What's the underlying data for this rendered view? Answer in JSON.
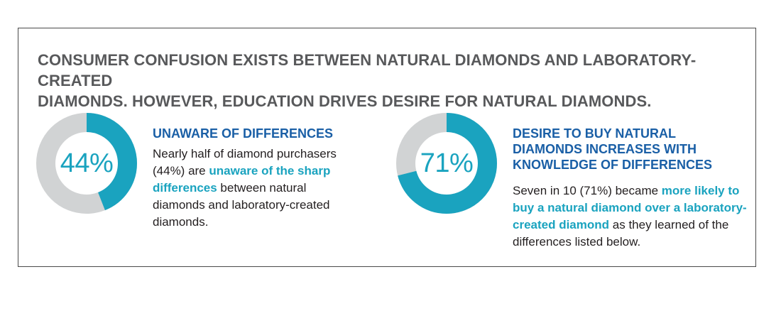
{
  "headline": {
    "line1": "CONSUMER CONFUSION EXISTS BETWEEN NATURAL DIAMONDS AND LABORATORY-CREATED",
    "line2": "DIAMONDS. HOWEVER, EDUCATION DRIVES DESIRE FOR NATURAL DIAMONDS."
  },
  "colors": {
    "accent": "#1aa3bf",
    "track": "#d1d3d4",
    "heading_blue": "#1a5fa6",
    "headline_gray": "#58595b"
  },
  "chart_data": [
    {
      "type": "pie",
      "value": 44,
      "max": 100,
      "label": "44%"
    },
    {
      "type": "pie",
      "value": 71,
      "max": 100,
      "label": "71%"
    }
  ],
  "left": {
    "title": "UNAWARE OF DIFFERENCES",
    "body_1": "Nearly half of diamond purchasers (44%) are ",
    "body_hl": "unaware of the sharp differences",
    "body_2": " between natural diamonds and laboratory-created diamonds."
  },
  "right": {
    "title_1": "DESIRE TO BUY NATURAL",
    "title_2": "DIAMONDS INCREASES WITH",
    "title_3": "KNOWLEDGE OF DIFFERENCES",
    "body_1": "Seven in 10 (71%) became ",
    "body_hl": "more likely to buy a natural diamond over a laboratory-created diamond",
    "body_2": " as they learned of the differences listed below."
  }
}
